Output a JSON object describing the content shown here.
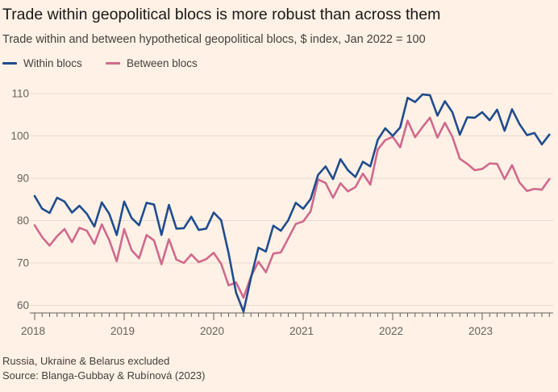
{
  "title": "Trade within geopolitical blocs is more robust than across them",
  "subtitle": "Trade within and between hypothetical geopolitical blocs, $ index, Jan 2022 = 100",
  "footnotes": [
    "Russia, Ukraine & Belarus excluded",
    "Source: Blanga-Gubbay & Rubínová (2023)"
  ],
  "colors": {
    "background": "#fff1e5",
    "within": "#1f4c8f",
    "between": "#d0698d",
    "grid": "#e6d9ce",
    "axis": "#66605c"
  },
  "chart_data": {
    "type": "line",
    "x_start": "2018-01",
    "x_frequency": "monthly",
    "x_ticks": [
      "2018",
      "2019",
      "2020",
      "2021",
      "2022",
      "2023"
    ],
    "y_ticks": [
      60,
      70,
      80,
      90,
      100,
      110
    ],
    "ylim": [
      58,
      112
    ],
    "grid": true,
    "legend_position": "top-left",
    "series": [
      {
        "name": "Within blocs",
        "color": "#1f4c8f",
        "values": [
          85.8,
          82.8,
          81.8,
          85.4,
          84.5,
          81.9,
          83.5,
          81.6,
          78.6,
          84.3,
          81.6,
          76.6,
          84.5,
          80.6,
          78.9,
          84.2,
          83.8,
          76.6,
          83.7,
          78.1,
          78.2,
          80.9,
          77.8,
          78.1,
          81.9,
          80.1,
          72.3,
          63.0,
          58.5,
          66.5,
          73.6,
          72.7,
          78.8,
          77.6,
          80.1,
          84.2,
          82.8,
          85.1,
          90.8,
          92.8,
          89.8,
          94.5,
          91.9,
          90.3,
          93.9,
          92.8,
          99.1,
          101.8,
          100.0,
          102.0,
          109.0,
          108.0,
          109.8,
          109.6,
          104.8,
          108.2,
          105.6,
          100.3,
          104.4,
          104.3,
          105.6,
          103.7,
          106.2,
          101.2,
          106.3,
          102.8,
          100.2,
          100.7,
          98.0,
          100.3
        ]
      },
      {
        "name": "Between blocs",
        "color": "#d0698d",
        "values": [
          78.9,
          76.1,
          74.1,
          76.3,
          78.0,
          74.9,
          78.3,
          77.6,
          74.5,
          79.1,
          75.4,
          70.4,
          78.0,
          73.0,
          71.1,
          76.6,
          75.3,
          69.7,
          75.6,
          70.8,
          70.0,
          72.0,
          70.2,
          70.9,
          72.4,
          69.8,
          64.7,
          65.4,
          61.8,
          66.8,
          70.3,
          67.8,
          72.2,
          72.5,
          75.8,
          79.2,
          79.8,
          82.2,
          89.7,
          88.9,
          85.4,
          88.8,
          86.9,
          87.9,
          91.1,
          88.5,
          96.8,
          99.0,
          99.8,
          97.3,
          103.6,
          99.7,
          102.1,
          104.3,
          99.6,
          103.1,
          99.8,
          94.6,
          93.4,
          91.9,
          92.2,
          93.5,
          93.4,
          89.8,
          93.1,
          89.0,
          87.0,
          87.5,
          87.3,
          89.8
        ]
      }
    ]
  }
}
